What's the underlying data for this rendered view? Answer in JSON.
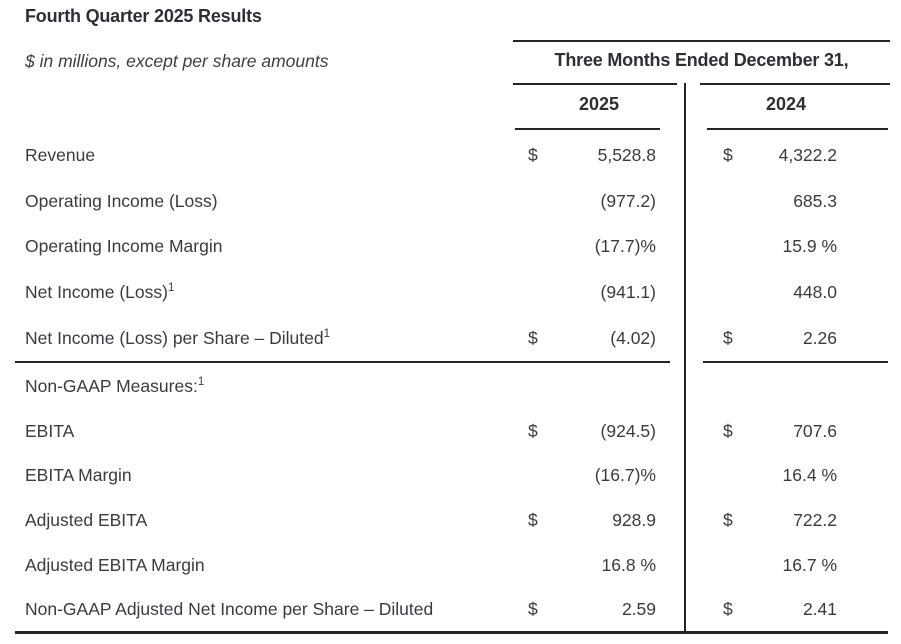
{
  "page": {
    "title": "Fourth Quarter 2025 Results",
    "subtitle": "$ in millions, except per share amounts"
  },
  "table": {
    "period_header": "Three Months Ended December 31,",
    "columns": [
      "2025",
      "2024"
    ],
    "gaap_rows": [
      {
        "label": "Revenue",
        "sup": "",
        "cur2025": "$",
        "v2025": "5,528.8",
        "cur2024": "$",
        "v2024": "4,322.2"
      },
      {
        "label": "Operating Income (Loss)",
        "sup": "",
        "cur2025": "",
        "v2025": "(977.2)",
        "cur2024": "",
        "v2024": "685.3"
      },
      {
        "label": "Operating Income Margin",
        "sup": "",
        "cur2025": "",
        "v2025": "(17.7)%",
        "cur2024": "",
        "v2024": "15.9 %"
      },
      {
        "label": "Net Income (Loss)",
        "sup": "1",
        "cur2025": "",
        "v2025": "(941.1)",
        "cur2024": "",
        "v2024": "448.0"
      },
      {
        "label": "Net Income (Loss) per Share – Diluted",
        "sup": "1",
        "cur2025": "$",
        "v2025": "(4.02)",
        "cur2024": "$",
        "v2024": "2.26"
      }
    ],
    "non_gaap_rows": [
      {
        "label": "Non-GAAP Measures:",
        "sup": "1",
        "cur2025": "",
        "v2025": "",
        "cur2024": "",
        "v2024": ""
      },
      {
        "label": "EBITA",
        "sup": "",
        "cur2025": "$",
        "v2025": "(924.5)",
        "cur2024": "$",
        "v2024": "707.6"
      },
      {
        "label": "EBITA Margin",
        "sup": "",
        "cur2025": "",
        "v2025": "(16.7)%",
        "cur2024": "",
        "v2024": "16.4 %"
      },
      {
        "label": "Adjusted EBITA",
        "sup": "",
        "cur2025": "$",
        "v2025": "928.9",
        "cur2024": "$",
        "v2024": "722.2"
      },
      {
        "label": "Adjusted EBITA Margin",
        "sup": "",
        "cur2025": "",
        "v2025": "16.8 %",
        "cur2024": "",
        "v2024": "16.7 %"
      },
      {
        "label": "Non-GAAP Adjusted Net Income per Share – Diluted",
        "sup": "",
        "cur2025": "$",
        "v2025": "2.59",
        "cur2024": "$",
        "v2024": "2.41"
      }
    ]
  },
  "colors": {
    "text": "#383b40",
    "rule": "#232529",
    "background": "#ffffff"
  }
}
